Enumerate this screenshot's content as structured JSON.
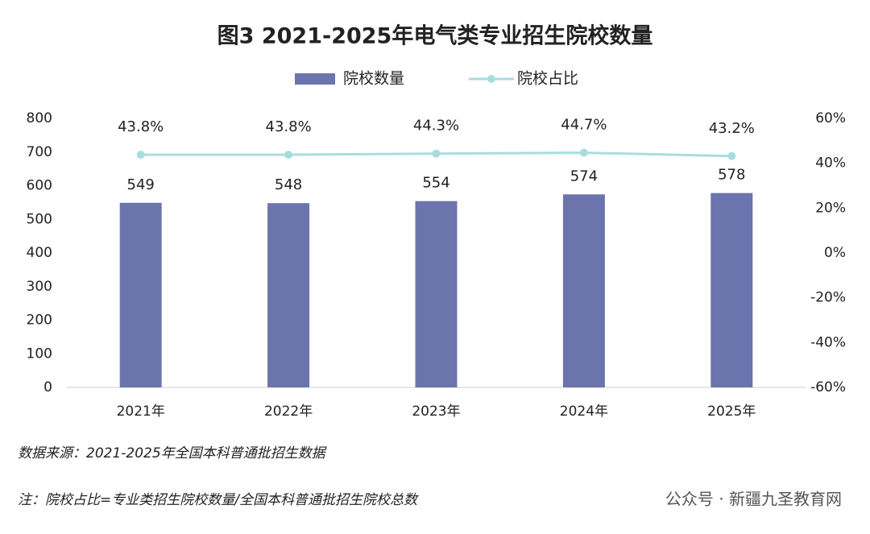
{
  "chart_data": {
    "type": "bar_line",
    "title": "图3 2021-2025年电气类专业招生院校数量",
    "categories": [
      "2021年",
      "2022年",
      "2023年",
      "2024年",
      "2025年"
    ],
    "series": [
      {
        "name": "院校数量",
        "type": "bar",
        "color": "#6b74ad",
        "values": [
          549,
          548,
          554,
          574,
          578
        ]
      },
      {
        "name": "院校占比",
        "type": "line",
        "axis": "y2",
        "color": "#a8dde0",
        "values": [
          43.8,
          43.8,
          44.3,
          44.7,
          43.2
        ],
        "value_labels": [
          "43.8%",
          "43.8%",
          "44.3%",
          "44.7%",
          "43.2%"
        ]
      }
    ],
    "ylim": [
      0,
      800
    ],
    "yticks": [
      0,
      100,
      200,
      300,
      400,
      500,
      600,
      700,
      800
    ],
    "y2lim": [
      -60,
      60
    ],
    "y2ticks": [
      {
        "value": -60,
        "label": "-60%"
      },
      {
        "value": -40,
        "label": "-40%"
      },
      {
        "value": -20,
        "label": "-20%"
      },
      {
        "value": 0,
        "label": "0%"
      },
      {
        "value": 20,
        "label": "20%"
      },
      {
        "value": 40,
        "label": "40%"
      },
      {
        "value": 60,
        "label": "60%"
      }
    ],
    "source": "数据来源：2021-2025年全国本科普通批招生数据",
    "note": "注：院校占比=专业类招生院校数量/全国本科普通批招生院校总数",
    "watermark": "公众号 · 新疆九圣教育网"
  }
}
